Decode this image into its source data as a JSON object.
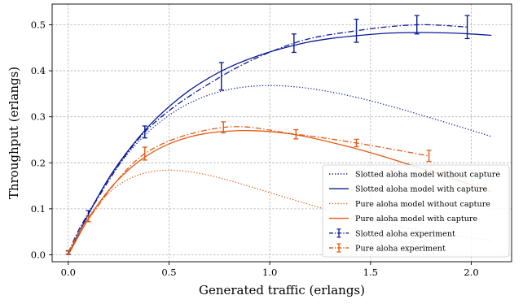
{
  "chart_data": {
    "type": "line",
    "title": "",
    "xlabel": "Generated traffic (erlangs)",
    "ylabel": "Throughput (erlangs)",
    "xlim": [
      -0.08,
      2.2
    ],
    "ylim": [
      -0.015,
      0.545
    ],
    "xticks": [
      "0.0",
      "0.5",
      "1.0",
      "1.5",
      "2.0"
    ],
    "xtick_values": [
      0,
      0.5,
      1.0,
      1.5,
      2.0
    ],
    "yticks": [
      "0.0",
      "0.1",
      "0.2",
      "0.3",
      "0.4",
      "0.5"
    ],
    "ytick_values": [
      0,
      0.1,
      0.2,
      0.3,
      0.4,
      0.5
    ],
    "grid": true,
    "legend_position": "lower-right",
    "colors": {
      "slotted": "#0a1a96",
      "pure": "#e35a14"
    },
    "series": [
      {
        "name": "Slotted aloha model without capture",
        "style": "dotted",
        "color": "#0a1a96",
        "function": "G*exp(-G)",
        "x_range": [
          0,
          2.1
        ]
      },
      {
        "name": "Slotted aloha model with capture",
        "style": "solid",
        "color": "#0a1a96",
        "x": [
          0.0,
          0.1,
          0.2,
          0.3,
          0.4,
          0.5,
          0.6,
          0.7,
          0.8,
          0.9,
          1.0,
          1.1,
          1.2,
          1.3,
          1.4,
          1.5,
          1.6,
          1.7,
          1.8,
          1.9,
          2.0,
          2.1
        ],
        "y": [
          0.0,
          0.088,
          0.166,
          0.228,
          0.28,
          0.322,
          0.357,
          0.385,
          0.408,
          0.426,
          0.441,
          0.453,
          0.463,
          0.47,
          0.475,
          0.479,
          0.482,
          0.483,
          0.483,
          0.482,
          0.48,
          0.477
        ]
      },
      {
        "name": "Pure aloha model without capture",
        "style": "dotted",
        "color": "#e35a14",
        "function": "G*exp(-2G)",
        "x_range": [
          0,
          2.1
        ]
      },
      {
        "name": "Pure aloha model with capture",
        "style": "solid",
        "color": "#e35a14",
        "x": [
          0.0,
          0.1,
          0.2,
          0.3,
          0.4,
          0.5,
          0.6,
          0.7,
          0.8,
          0.9,
          1.0,
          1.1,
          1.2,
          1.3,
          1.4,
          1.5,
          1.6,
          1.7,
          1.8,
          1.9,
          2.0,
          2.1
        ],
        "y": [
          0.0,
          0.078,
          0.14,
          0.185,
          0.218,
          0.241,
          0.256,
          0.265,
          0.269,
          0.27,
          0.268,
          0.263,
          0.255,
          0.245,
          0.234,
          0.222,
          0.209,
          0.195,
          0.181,
          0.167,
          0.152,
          0.137
        ]
      },
      {
        "name": "Slotted aloha experiment",
        "style": "dashdot",
        "color": "#0a1a96",
        "x": [
          0.0,
          0.1,
          0.38,
          0.76,
          1.12,
          1.43,
          1.73,
          1.98
        ],
        "y": [
          0.005,
          0.09,
          0.267,
          0.388,
          0.46,
          0.487,
          0.5,
          0.495
        ],
        "yerr": [
          0.004,
          0.006,
          0.013,
          0.03,
          0.02,
          0.025,
          0.02,
          0.025
        ]
      },
      {
        "name": "Pure aloha experiment",
        "style": "dashdot",
        "color": "#e35a14",
        "x": [
          0.0,
          0.1,
          0.38,
          0.77,
          1.13,
          1.43,
          1.79
        ],
        "y": [
          0.005,
          0.078,
          0.22,
          0.277,
          0.262,
          0.243,
          0.215
        ],
        "yerr": [
          0.003,
          0.006,
          0.014,
          0.012,
          0.01,
          0.008,
          0.012
        ]
      }
    ]
  }
}
